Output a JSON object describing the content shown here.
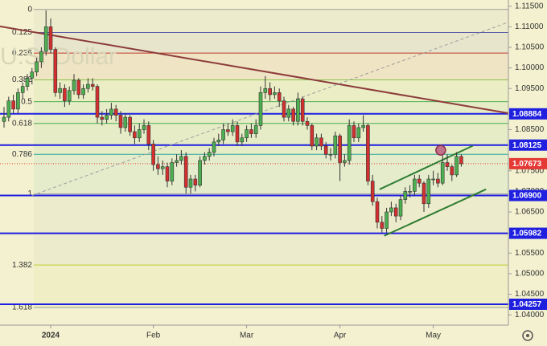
{
  "chart_data": {
    "type": "candlestick",
    "watermark": "U.S. Dollar",
    "up_color": "#4caf50",
    "down_color": "#d32f2f",
    "ylim": [
      1.0375,
      1.1165
    ],
    "yticks": [
      {
        "value": 1.115,
        "label": "1.11500"
      },
      {
        "value": 1.11,
        "label": "1.11000"
      },
      {
        "value": 1.105,
        "label": "1.10500"
      },
      {
        "value": 1.1,
        "label": "1.10000"
      },
      {
        "value": 1.095,
        "label": "1.09500"
      },
      {
        "value": 1.085,
        "label": "1.08500"
      },
      {
        "value": 1.075,
        "label": "1.07500"
      },
      {
        "value": 1.07,
        "label": "1.07000"
      },
      {
        "value": 1.065,
        "label": "1.06500"
      },
      {
        "value": 1.055,
        "label": "1.05500"
      },
      {
        "value": 1.05,
        "label": "1.05000"
      },
      {
        "value": 1.045,
        "label": "1.04500"
      },
      {
        "value": 1.04,
        "label": "1.04000"
      }
    ],
    "xticks": [
      {
        "value": 10,
        "label": "2024"
      },
      {
        "value": 32,
        "label": "Feb"
      },
      {
        "value": 52,
        "label": "Mar"
      },
      {
        "value": 72,
        "label": "Apr"
      },
      {
        "value": 92,
        "label": "May"
      }
    ],
    "fib_levels": [
      {
        "label": "0",
        "value": 1.1142,
        "color": "#9e9e9e"
      },
      {
        "label": "0.125",
        "value": 1.1086,
        "color": "#5c5ca8"
      },
      {
        "label": "0.236",
        "value": 1.1036,
        "color": "#c0392b"
      },
      {
        "label": "0.382",
        "value": 1.0971,
        "color": "#8bc34a"
      },
      {
        "label": "0.5",
        "value": 1.0918,
        "color": "#4caf50"
      },
      {
        "label": "0.618",
        "value": 1.0865,
        "color": "#4caf50"
      },
      {
        "label": "0.786",
        "value": 1.079,
        "color": "#26a69a"
      },
      {
        "label": "1",
        "value": 1.0694,
        "color": "#9e9e9e"
      },
      {
        "label": "1.382",
        "value": 1.0521,
        "color": "#c0ca33"
      },
      {
        "label": "1.618",
        "value": 1.0418,
        "color": "#9e9e9e"
      }
    ],
    "levels": [
      {
        "value": 1.08884,
        "label": "1.08884",
        "color": "#1f1fe0"
      },
      {
        "value": 1.08125,
        "label": "1.08125",
        "color": "#1f1fe0"
      },
      {
        "value": 1.069,
        "label": "1.06900",
        "color": "#1f1fe0"
      },
      {
        "value": 1.05982,
        "label": "1.05982",
        "color": "#1f1fe0"
      },
      {
        "value": 1.04257,
        "label": "1.04257",
        "color": "#1f1fe0"
      }
    ],
    "last_price": {
      "value": 1.07673,
      "label": "1.07673",
      "color": "#e53935"
    },
    "trend_lines": [
      {
        "from": [
          -0.86,
          1.1101
        ],
        "to": [
          108.1,
          1.089
        ],
        "color": "#8d3b3b",
        "dashed": false
      },
      {
        "from": [
          6.0,
          1.069
        ],
        "to": [
          108.1,
          1.1111
        ],
        "color": "#9e9e9e",
        "dashed": true
      },
      {
        "from": [
          80.5,
          1.0705
        ],
        "to": [
          100.5,
          1.0811
        ],
        "color": "#2e7d32",
        "dashed": false
      },
      {
        "from": [
          81.5,
          1.0592
        ],
        "to": [
          103.3,
          1.0705
        ],
        "color": "#2e7d32",
        "dashed": false
      }
    ],
    "marker": {
      "x": 93.6,
      "value": 1.08,
      "color": "#c0728a"
    },
    "candles": [
      [
        1.087,
        1.0905,
        1.0855,
        1.088
      ],
      [
        1.088,
        1.093,
        1.087,
        1.092
      ],
      [
        1.092,
        1.0935,
        1.089,
        1.09
      ],
      [
        1.09,
        1.095,
        1.089,
        1.094
      ],
      [
        1.094,
        1.0965,
        1.0925,
        1.0955
      ],
      [
        1.0955,
        1.0985,
        1.0945,
        1.0975
      ],
      [
        1.0975,
        1.1,
        1.096,
        1.099
      ],
      [
        1.099,
        1.1025,
        1.098,
        1.1015
      ],
      [
        1.1015,
        1.105,
        1.1,
        1.104
      ],
      [
        1.104,
        1.114,
        1.103,
        1.11
      ],
      [
        1.11,
        1.112,
        1.1035,
        1.1045
      ],
      [
        1.1045,
        1.105,
        1.093,
        1.094
      ],
      [
        1.094,
        1.0965,
        1.0925,
        1.095
      ],
      [
        1.095,
        1.096,
        1.0905,
        1.092
      ],
      [
        1.092,
        1.0955,
        1.091,
        1.0945
      ],
      [
        1.0945,
        1.0985,
        1.0935,
        1.097
      ],
      [
        1.097,
        1.0975,
        1.0925,
        1.0935
      ],
      [
        1.0935,
        1.096,
        1.0925,
        1.095
      ],
      [
        1.095,
        1.0975,
        1.094,
        1.096
      ],
      [
        1.096,
        1.0975,
        1.0945,
        1.0955
      ],
      [
        1.0955,
        1.096,
        1.0865,
        1.088
      ],
      [
        1.088,
        1.0895,
        1.086,
        1.0875
      ],
      [
        1.0875,
        1.09,
        1.0865,
        1.0885
      ],
      [
        1.0885,
        1.0915,
        1.0875,
        1.09
      ],
      [
        1.09,
        1.091,
        1.087,
        1.0885
      ],
      [
        1.0885,
        1.0895,
        1.084,
        1.0855
      ],
      [
        1.0855,
        1.089,
        1.0845,
        1.088
      ],
      [
        1.088,
        1.0885,
        1.0835,
        1.0845
      ],
      [
        1.0845,
        1.086,
        1.0815,
        1.083
      ],
      [
        1.083,
        1.0865,
        1.082,
        1.085
      ],
      [
        1.085,
        1.0875,
        1.084,
        1.086
      ],
      [
        1.086,
        1.087,
        1.08,
        1.0815
      ],
      [
        1.0815,
        1.0825,
        1.075,
        1.0765
      ],
      [
        1.0765,
        1.0785,
        1.074,
        1.0755
      ],
      [
        1.0755,
        1.0775,
        1.074,
        1.076
      ],
      [
        1.076,
        1.077,
        1.071,
        1.0725
      ],
      [
        1.0725,
        1.078,
        1.0715,
        1.077
      ],
      [
        1.077,
        1.079,
        1.076,
        1.0775
      ],
      [
        1.0775,
        1.08,
        1.0765,
        1.0785
      ],
      [
        1.0785,
        1.0795,
        1.0695,
        1.071
      ],
      [
        1.071,
        1.074,
        1.0695,
        1.073
      ],
      [
        1.073,
        1.074,
        1.07,
        1.0715
      ],
      [
        1.0715,
        1.0785,
        1.071,
        1.0775
      ],
      [
        1.0775,
        1.0795,
        1.0765,
        1.0785
      ],
      [
        1.0785,
        1.0805,
        1.0775,
        1.0795
      ],
      [
        1.0795,
        1.083,
        1.0785,
        1.082
      ],
      [
        1.082,
        1.084,
        1.081,
        1.0825
      ],
      [
        1.0825,
        1.0865,
        1.0815,
        1.085
      ],
      [
        1.085,
        1.0865,
        1.0835,
        1.0845
      ],
      [
        1.0845,
        1.0875,
        1.0835,
        1.086
      ],
      [
        1.086,
        1.087,
        1.081,
        1.082
      ],
      [
        1.082,
        1.084,
        1.081,
        1.083
      ],
      [
        1.083,
        1.086,
        1.082,
        1.085
      ],
      [
        1.085,
        1.0865,
        1.083,
        1.084
      ],
      [
        1.084,
        1.0875,
        1.083,
        1.086
      ],
      [
        1.086,
        1.0955,
        1.085,
        1.094
      ],
      [
        1.094,
        1.098,
        1.0925,
        1.095
      ],
      [
        1.095,
        1.0965,
        1.092,
        1.0935
      ],
      [
        1.0935,
        1.0955,
        1.0925,
        1.094
      ],
      [
        1.094,
        1.095,
        1.0905,
        1.092
      ],
      [
        1.092,
        1.093,
        1.087,
        1.088
      ],
      [
        1.088,
        1.091,
        1.087,
        1.09
      ],
      [
        1.09,
        1.0905,
        1.086,
        1.087
      ],
      [
        1.087,
        1.094,
        1.086,
        1.0925
      ],
      [
        1.0925,
        1.093,
        1.086,
        1.087
      ],
      [
        1.087,
        1.088,
        1.085,
        1.086
      ],
      [
        1.086,
        1.0865,
        1.08,
        1.081
      ],
      [
        1.081,
        1.084,
        1.08,
        1.083
      ],
      [
        1.083,
        1.084,
        1.08,
        1.081
      ],
      [
        1.081,
        1.082,
        1.078,
        1.079
      ],
      [
        1.079,
        1.0805,
        1.0775,
        1.079
      ],
      [
        1.079,
        1.0845,
        1.078,
        1.0835
      ],
      [
        1.0835,
        1.084,
        1.0725,
        1.077
      ],
      [
        1.077,
        1.079,
        1.076,
        1.0775
      ],
      [
        1.0775,
        1.0875,
        1.0765,
        1.086
      ],
      [
        1.086,
        1.087,
        1.082,
        1.083
      ],
      [
        1.083,
        1.0865,
        1.082,
        1.0855
      ],
      [
        1.0855,
        1.0885,
        1.0845,
        1.086
      ],
      [
        1.086,
        1.0865,
        1.0715,
        1.0725
      ],
      [
        1.0725,
        1.074,
        1.0665,
        1.0675
      ],
      [
        1.0675,
        1.0685,
        1.061,
        1.0625
      ],
      [
        1.0625,
        1.064,
        1.06,
        1.061
      ],
      [
        1.061,
        1.066,
        1.06,
        1.065
      ],
      [
        1.065,
        1.0675,
        1.064,
        1.066
      ],
      [
        1.066,
        1.067,
        1.0625,
        1.064
      ],
      [
        1.064,
        1.069,
        1.063,
        1.068
      ],
      [
        1.068,
        1.071,
        1.067,
        1.07
      ],
      [
        1.07,
        1.0715,
        1.0685,
        1.07
      ],
      [
        1.07,
        1.074,
        1.069,
        1.073
      ],
      [
        1.073,
        1.074,
        1.071,
        1.072
      ],
      [
        1.072,
        1.0725,
        1.065,
        1.067
      ],
      [
        1.067,
        1.074,
        1.066,
        1.073
      ],
      [
        1.073,
        1.075,
        1.0715,
        1.073
      ],
      [
        1.073,
        1.0745,
        1.071,
        1.072
      ],
      [
        1.072,
        1.079,
        1.0715,
        1.077
      ],
      [
        1.077,
        1.079,
        1.075,
        1.076
      ],
      [
        1.076,
        1.0765,
        1.0725,
        1.074
      ],
      [
        1.074,
        1.0795,
        1.0735,
        1.0785
      ],
      [
        1.0785,
        1.079,
        1.076,
        1.0767
      ]
    ]
  }
}
